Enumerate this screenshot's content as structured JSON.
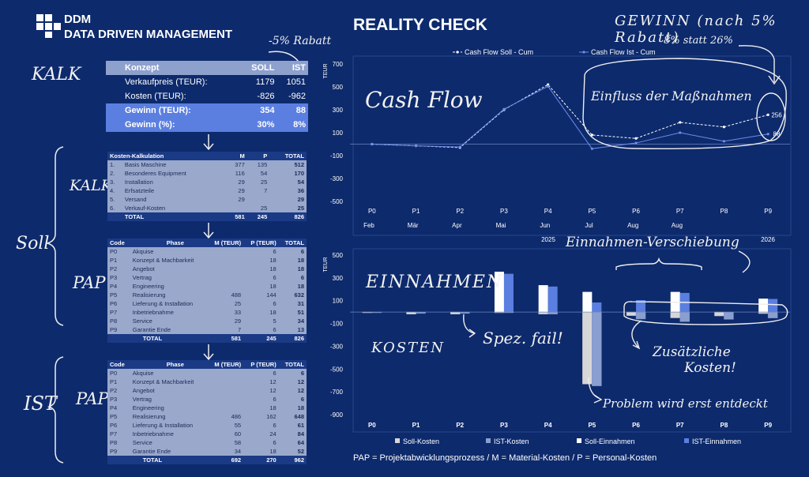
{
  "logo": {
    "abbr": "DDM",
    "name": "DATA DRIVEN MANAGEMENT"
  },
  "title": "REALITY CHECK",
  "annotations": {
    "kalk_top": "KALK",
    "rabatt": "-5% Rabatt",
    "kalk_mid": "KALK",
    "soll": "Soll",
    "pap1": "PAP",
    "ist": "IST",
    "pap2": "PAP",
    "gewinn_title": "GEWINN (nach 5% Rabatt)",
    "gewinn_note": "8% statt 26%",
    "cash_flow": "Cash Flow",
    "einfluss": "Einfluss der Maßnahmen",
    "einnahmen_verschiebung": "Einnahmen-Verschiebung",
    "einnahmen": "EINNAHMEN",
    "kosten": "KOSTEN",
    "spez_fail": "Spez. fail!",
    "zusaetzliche": "Zusätzliche",
    "kosten_excl": "Kosten!",
    "problem": "Problem wird erst entdeckt"
  },
  "kalk": {
    "head": [
      "Konzept",
      "SOLL",
      "IST"
    ],
    "rows": [
      {
        "label": "Verkaufpreis (TEUR):",
        "soll": "1179",
        "ist": "1051"
      },
      {
        "label": "Kosten (TEUR):",
        "soll": "-826",
        "ist": "-962"
      }
    ],
    "hi": [
      {
        "label": "Gewinn (TEUR):",
        "soll": "354",
        "ist": "88"
      },
      {
        "label": "Gewinn (%):",
        "soll": "30%",
        "ist": "8%"
      }
    ]
  },
  "kosten_kalk": {
    "head": [
      "Kosten-Kalkulation",
      "M",
      "P",
      "TOTAL"
    ],
    "rows": [
      [
        "1.",
        "Basis Maschine",
        "377",
        "135",
        "512"
      ],
      [
        "2.",
        "Besonderes Equipment",
        "116",
        "54",
        "170"
      ],
      [
        "3.",
        "Installation",
        "29",
        "25",
        "54"
      ],
      [
        "4.",
        "Erfsatzteile",
        "29",
        "7",
        "36"
      ],
      [
        "5.",
        "Versand",
        "29",
        "",
        "29"
      ],
      [
        "6.",
        "Verkauf-Kosten",
        "",
        "25",
        "25"
      ]
    ],
    "total": [
      "TOTAL",
      "581",
      "245",
      "826"
    ]
  },
  "pap_soll": {
    "head": [
      "Code",
      "Phase",
      "M (TEUR)",
      "P (TEUR)",
      "TOTAL"
    ],
    "rows": [
      [
        "P0",
        "Akquise",
        "",
        "6",
        "6"
      ],
      [
        "P1",
        "Konzept & Machbarkeit",
        "",
        "18",
        "18"
      ],
      [
        "P2",
        "Angebot",
        "",
        "18",
        "18"
      ],
      [
        "P3",
        "Vertrag",
        "",
        "6",
        "6"
      ],
      [
        "P4",
        "Engineering",
        "",
        "18",
        "18"
      ],
      [
        "P5",
        "Realisierung",
        "488",
        "144",
        "632"
      ],
      [
        "P6",
        "Lieferung & Installation",
        "25",
        "6",
        "31"
      ],
      [
        "P7",
        "Inbetriebnahme",
        "33",
        "18",
        "51"
      ],
      [
        "P8",
        "Service",
        "29",
        "5",
        "34"
      ],
      [
        "P9",
        "Garantie Ende",
        "7",
        "6",
        "13"
      ]
    ],
    "total": [
      "TOTAL",
      "581",
      "245",
      "826"
    ]
  },
  "pap_ist": {
    "head": [
      "Code",
      "Phase",
      "M (TEUR)",
      "P (TEUR)",
      "TOTAL"
    ],
    "rows": [
      [
        "P0",
        "Akquise",
        "",
        "6",
        "6"
      ],
      [
        "P1",
        "Konzept & Machbarkeit",
        "",
        "12",
        "12"
      ],
      [
        "P2",
        "Angebot",
        "",
        "12",
        "12"
      ],
      [
        "P3",
        "Vertrag",
        "",
        "6",
        "6"
      ],
      [
        "P4",
        "Engineering",
        "",
        "18",
        "18"
      ],
      [
        "P5",
        "Realisierung",
        "486",
        "162",
        "648"
      ],
      [
        "P6",
        "Lieferung & Installation",
        "55",
        "6",
        "61"
      ],
      [
        "P7",
        "Inbetriebnahme",
        "60",
        "24",
        "84"
      ],
      [
        "P8",
        "Service",
        "58",
        "6",
        "64"
      ],
      [
        "P9",
        "Garantie Ende",
        "34",
        "18",
        "52"
      ]
    ],
    "total": [
      "TOTAL",
      "692",
      "270",
      "962"
    ]
  },
  "footer": "PAP = Projektabwicklungsprozess / M = Material-Kosten / P = Personal-Kosten",
  "colors": {
    "bg": "#0d2a6c",
    "ist": "#5b7fe0",
    "header": "#1b3a85",
    "row": "#9aa8cc"
  },
  "chart_data": [
    {
      "type": "line",
      "ylabel": "TEUR",
      "ylim": [
        -500,
        700
      ],
      "yticks": [
        700,
        500,
        300,
        100,
        -100,
        -300,
        -500
      ],
      "categories": [
        "P0",
        "P1",
        "P2",
        "P3",
        "P4",
        "P5",
        "P6",
        "P7",
        "P8",
        "P9"
      ],
      "months": [
        "Feb",
        "",
        "Mär",
        "",
        "Apr",
        "",
        "Mai",
        "",
        "Jun",
        "",
        "Jul",
        "",
        "Aug",
        "",
        "Aug"
      ],
      "years": [
        "2025",
        "2026"
      ],
      "series": [
        {
          "name": "Cash Flow Soll - Cum",
          "values": [
            0,
            -15,
            -30,
            300,
            520,
            80,
            50,
            190,
            150,
            256
          ]
        },
        {
          "name": "Cash Flow Ist - Cum",
          "values": [
            0,
            -15,
            -25,
            305,
            505,
            -40,
            10,
            100,
            25,
            88
          ]
        }
      ],
      "labels": [
        "256",
        "88"
      ]
    },
    {
      "type": "bar",
      "ylabel": "TEUR",
      "ylim": [
        -900,
        500
      ],
      "yticks": [
        500,
        300,
        100,
        -100,
        -300,
        -500,
        -700,
        -900
      ],
      "categories": [
        "P0",
        "P1",
        "P2",
        "P3",
        "P4",
        "P5",
        "P6",
        "P7",
        "P8",
        "P9"
      ],
      "series": [
        {
          "name": "Soll-Kosten",
          "values": [
            -6,
            -18,
            -18,
            -6,
            -18,
            -632,
            -31,
            -51,
            -34,
            -13
          ]
        },
        {
          "name": "IST-Kosten",
          "values": [
            -6,
            -12,
            -12,
            -6,
            -18,
            -648,
            -61,
            -84,
            -64,
            -52
          ]
        },
        {
          "name": "Soll-Einnahmen",
          "values": [
            0,
            0,
            0,
            354,
            236,
            177,
            0,
            177,
            0,
            118
          ]
        },
        {
          "name": "IST-Einnahmen",
          "values": [
            0,
            0,
            0,
            336,
            224,
            84,
            105,
            168,
            0,
            115
          ]
        }
      ]
    }
  ]
}
